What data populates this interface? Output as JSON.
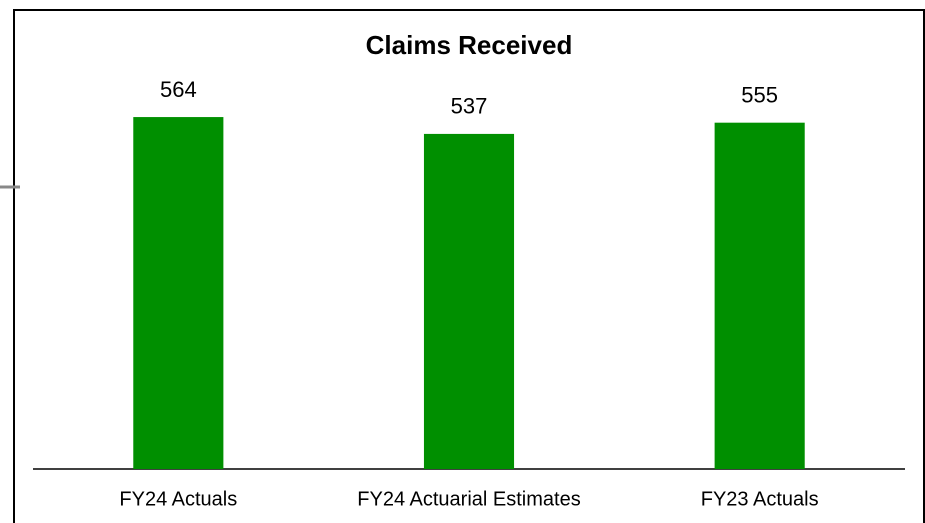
{
  "chart_data": {
    "type": "bar",
    "title": "Claims Received",
    "categories": [
      "FY24 Actuals",
      "FY24 Actuarial Estimates",
      "FY23 Actuals"
    ],
    "values": [
      564,
      537,
      555
    ],
    "color": "#008f00"
  }
}
